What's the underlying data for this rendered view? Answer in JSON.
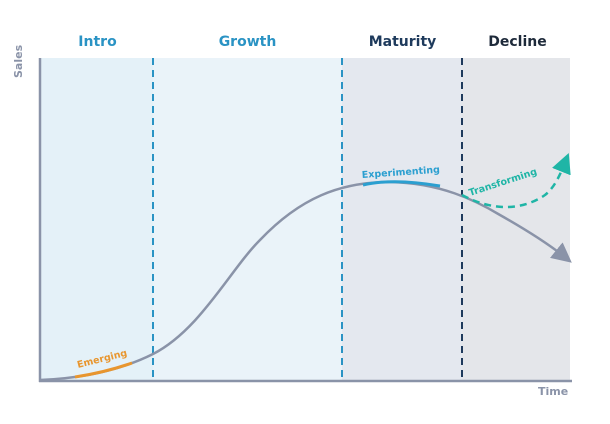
{
  "stages": [
    {
      "label": "Intro",
      "color": "#2a93c4"
    },
    {
      "label": "Growth",
      "color": "#2a93c4"
    },
    {
      "label": "Maturity",
      "color": "#1e3a5c"
    },
    {
      "label": "Decline",
      "color": "#1e2a3a"
    }
  ],
  "axes": {
    "y_label": "Sales",
    "x_label": "Time"
  },
  "curve_labels": {
    "emerging": "Emerging",
    "experimenting": "Experimenting",
    "transforming": "Transforming"
  },
  "colors": {
    "main_curve": "#8a93a8",
    "emerging": "#e8962f",
    "experimenting": "#2b9fd0",
    "transforming": "#1fb5a6",
    "divider_light": "#2a93c4",
    "divider_dark": "#1e3a5c"
  }
}
